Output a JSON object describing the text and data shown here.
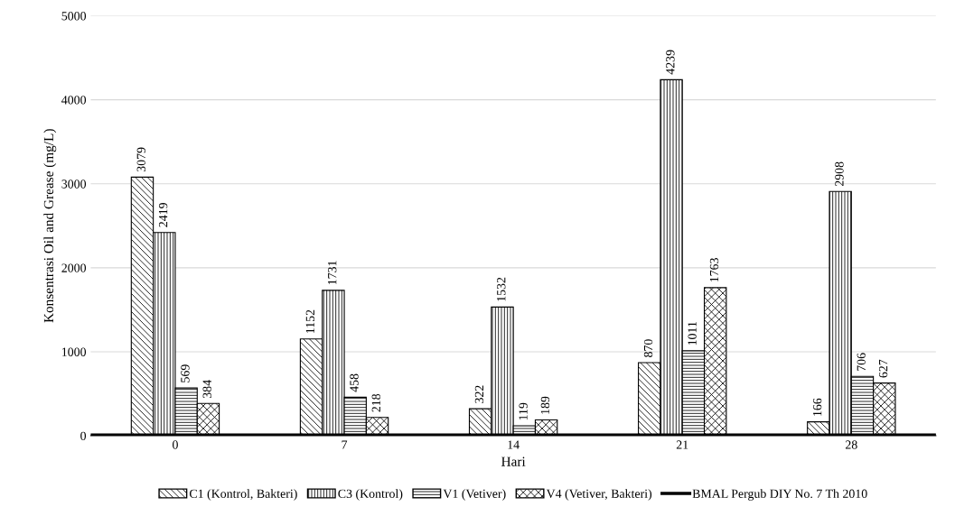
{
  "chart_data": {
    "type": "bar",
    "xlabel": "Hari",
    "ylabel": "Konsentrasi Oil and Grease (mg/L)",
    "categories": [
      "0",
      "7",
      "14",
      "21",
      "28"
    ],
    "series": [
      {
        "name": "C1 (Kontrol, Bakteri)",
        "color": "#000000",
        "values": [
          3079,
          1152,
          322,
          870,
          166
        ]
      },
      {
        "name": "C3 (Kontrol)",
        "color": "#000000",
        "values": [
          2419,
          1731,
          1532,
          4239,
          2908
        ]
      },
      {
        "name": "V1 (Vetiver)",
        "color": "#000000",
        "values": [
          569,
          458,
          119,
          1011,
          706
        ]
      },
      {
        "name": "V4 (Vetiver, Bakteri)",
        "color": "#000000",
        "values": [
          384,
          218,
          189,
          1763,
          627
        ]
      }
    ],
    "ref_lines": [
      {
        "axis": "y",
        "value": 10,
        "label": "BMAL Pergub DIY No. 7 Th 2010",
        "color": "#000000",
        "line_style": "solid"
      }
    ],
    "ylim": [
      0,
      5000
    ],
    "yticks": [
      0,
      1000,
      2000,
      3000,
      4000,
      5000
    ],
    "grid": "y",
    "legend": "bottom",
    "data_labels": true
  }
}
